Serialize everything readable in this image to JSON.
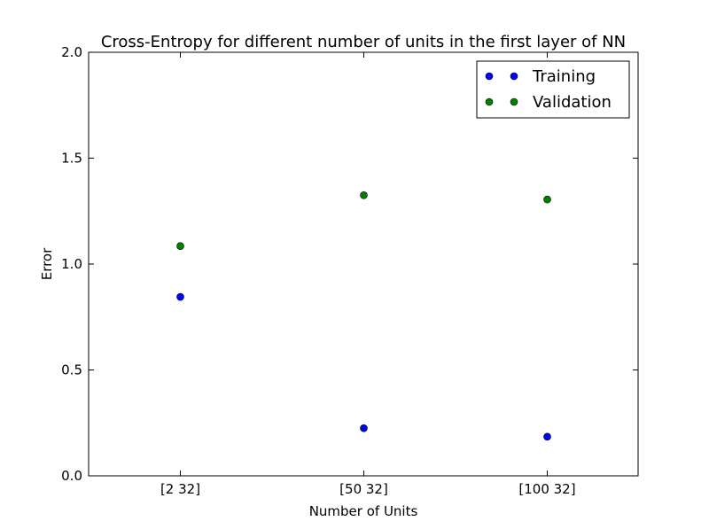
{
  "chart_data": {
    "type": "scatter",
    "title": "Cross-Entropy for different number of units in the first layer of NN",
    "xlabel": "Number of Units",
    "ylabel": "Error",
    "categories": [
      "[2 32]",
      "[50 32]",
      "[100 32]"
    ],
    "ylim": [
      0.0,
      2.0
    ],
    "yticks": [
      "0.0",
      "0.5",
      "1.0",
      "1.5",
      "2.0"
    ],
    "grid": false,
    "legend_position": "top-right",
    "series": [
      {
        "name": "Training",
        "color": "#0000ff",
        "values": [
          0.845,
          0.225,
          0.185
        ]
      },
      {
        "name": "Validation",
        "color": "#008000",
        "values": [
          1.085,
          1.325,
          1.305
        ]
      }
    ]
  }
}
